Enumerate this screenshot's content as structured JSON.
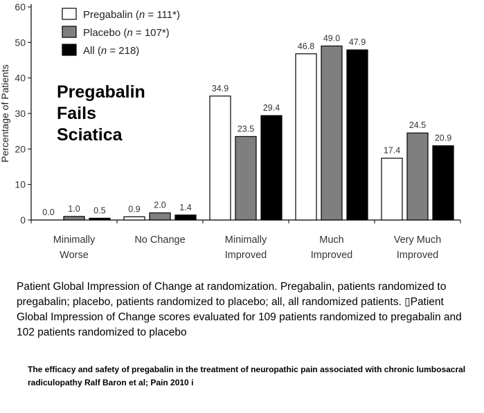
{
  "chart_data": {
    "type": "bar",
    "title": "",
    "xlabel": "",
    "ylabel": "Percentage of Patients",
    "ylim": [
      0,
      60
    ],
    "yticks": [
      0,
      10,
      20,
      30,
      40,
      50,
      60
    ],
    "grid": false,
    "legend_position": "top-left",
    "categories": [
      [
        "Minimally",
        "Worse"
      ],
      [
        "No  Change"
      ],
      [
        "Minimally",
        "Improved"
      ],
      [
        "Much",
        "Improved"
      ],
      [
        "Very Much",
        "Improved"
      ]
    ],
    "series": [
      {
        "legend": {
          "pre": "Pregabalin (",
          "italic": "n",
          "post": " = 111*)"
        },
        "color": "#ffffff",
        "values": [
          0.0,
          0.9,
          34.9,
          46.8,
          17.4
        ],
        "labels": [
          "0.0",
          "0.9",
          "34.9",
          "46.8",
          "17.4"
        ]
      },
      {
        "legend": {
          "pre": "Placebo (",
          "italic": "n",
          "post": " = 107*)"
        },
        "color": "#7f7f7f",
        "values": [
          1.0,
          2.0,
          23.5,
          49.0,
          24.5
        ],
        "labels": [
          "1.0",
          "2.0",
          "23.5",
          "49.0",
          "24.5"
        ]
      },
      {
        "legend": {
          "pre": "All (",
          "italic": "n",
          "post": " = 218)"
        },
        "color": "#000000",
        "values": [
          0.5,
          1.4,
          29.4,
          47.9,
          20.9
        ],
        "labels": [
          "0.5",
          "1.4",
          "29.4",
          "47.9",
          "20.9"
        ]
      }
    ]
  },
  "overlay_text": [
    "Pregabalin",
    "Fails",
    "Sciatica"
  ],
  "caption": "Patient Global Impression of Change at randomization. Pregabalin, patients randomized to pregabalin; placebo, patients randomized to placebo; all, all randomized patients. ▯Patient Global Impression of Change scores evaluated for 109 patients randomized to pregabalin and 102 patients randomized to placebo",
  "citation": "The efficacy and safety of pregabalin in the treatment of neuropathic pain associated with chronic lumbosacral radiculopathy Ralf Baron et al; Pain 2010 i"
}
